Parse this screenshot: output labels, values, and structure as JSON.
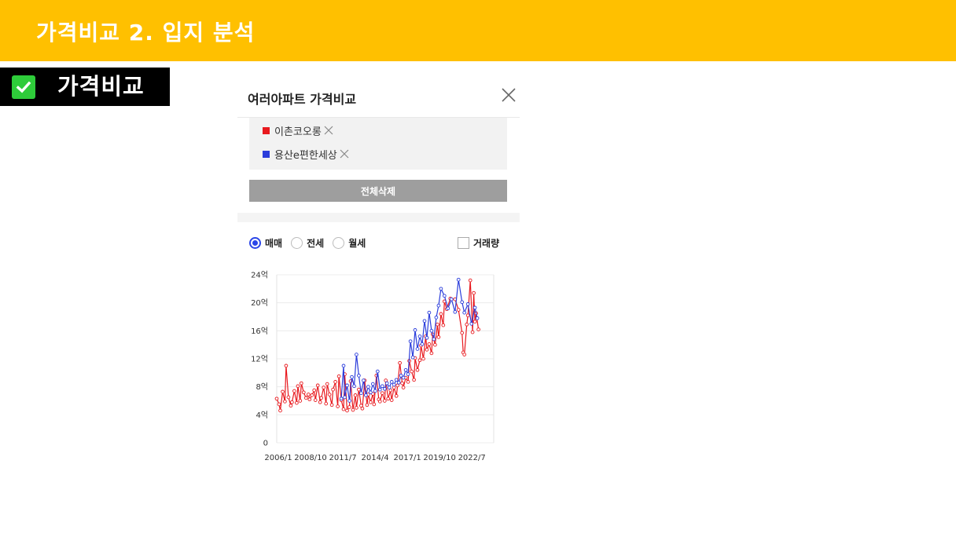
{
  "slide": {
    "title": "가격비교 2. 입지 분석",
    "header_color": "#FFC000"
  },
  "section": {
    "label": "가격비교",
    "icon": "check-icon"
  },
  "panel": {
    "title": "여러아파트 가격비교",
    "close_icon": "close-icon",
    "apartments": [
      {
        "name": "이촌코오롱",
        "color": "#e8191e"
      },
      {
        "name": "용산e편한세상",
        "color": "#2b3ddb"
      }
    ],
    "clear_all_label": "전체삭제",
    "filters": {
      "options": [
        {
          "label": "매매",
          "checked": true
        },
        {
          "label": "전세",
          "checked": false
        },
        {
          "label": "월세",
          "checked": false
        }
      ],
      "volume_label": "거래량",
      "volume_checked": false
    }
  },
  "chart_data": {
    "type": "line",
    "x_tick_labels": [
      "2006/1",
      "2008/10",
      "2011/7",
      "2014/4",
      "2017/1",
      "2019/10",
      "2022/7"
    ],
    "y_tick_labels": [
      "0",
      "4억",
      "8억",
      "12억",
      "16억",
      "20억",
      "24억"
    ],
    "ylim": [
      0,
      24
    ],
    "xlim": [
      2006.0,
      2024.5
    ],
    "grid": true,
    "series": [
      {
        "name": "이촌코오롱",
        "color": "#e8191e",
        "points": [
          [
            2006.0,
            6.3
          ],
          [
            2006.2,
            5.5
          ],
          [
            2006.3,
            4.6
          ],
          [
            2006.5,
            7.3
          ],
          [
            2006.7,
            5.9
          ],
          [
            2006.8,
            11.0
          ],
          [
            2007.0,
            6.5
          ],
          [
            2007.2,
            5.3
          ],
          [
            2007.3,
            5.8
          ],
          [
            2007.5,
            7.4
          ],
          [
            2007.7,
            5.7
          ],
          [
            2007.8,
            8.1
          ],
          [
            2008.0,
            6.0
          ],
          [
            2008.1,
            8.5
          ],
          [
            2008.3,
            7.2
          ],
          [
            2008.5,
            6.4
          ],
          [
            2008.7,
            6.9
          ],
          [
            2008.8,
            6.2
          ],
          [
            2009.0,
            6.8
          ],
          [
            2009.2,
            7.5
          ],
          [
            2009.3,
            6.1
          ],
          [
            2009.5,
            8.2
          ],
          [
            2009.7,
            5.8
          ],
          [
            2009.8,
            6.4
          ],
          [
            2010.0,
            7.9
          ],
          [
            2010.2,
            5.6
          ],
          [
            2010.3,
            8.4
          ],
          [
            2010.5,
            6.9
          ],
          [
            2010.7,
            5.4
          ],
          [
            2010.8,
            7.6
          ],
          [
            2011.0,
            8.7
          ],
          [
            2011.2,
            5.2
          ],
          [
            2011.3,
            9.5
          ],
          [
            2011.5,
            6.1
          ],
          [
            2011.7,
            4.8
          ],
          [
            2011.8,
            9.8
          ],
          [
            2012.0,
            4.6
          ],
          [
            2012.2,
            5.1
          ],
          [
            2012.3,
            8.8
          ],
          [
            2012.5,
            4.7
          ],
          [
            2012.7,
            6.8
          ],
          [
            2012.8,
            5.0
          ],
          [
            2013.0,
            7.6
          ],
          [
            2013.2,
            5.3
          ],
          [
            2013.3,
            4.9
          ],
          [
            2013.5,
            8.9
          ],
          [
            2013.7,
            5.4
          ],
          [
            2013.8,
            6.9
          ],
          [
            2014.0,
            5.8
          ],
          [
            2014.2,
            7.0
          ],
          [
            2014.3,
            5.5
          ],
          [
            2014.5,
            9.6
          ],
          [
            2014.7,
            6.2
          ],
          [
            2014.8,
            5.9
          ],
          [
            2015.0,
            7.1
          ],
          [
            2015.2,
            6.0
          ],
          [
            2015.3,
            8.9
          ],
          [
            2015.5,
            6.3
          ],
          [
            2015.7,
            7.5
          ],
          [
            2015.8,
            6.1
          ],
          [
            2016.0,
            7.9
          ],
          [
            2016.2,
            6.7
          ],
          [
            2016.3,
            8.2
          ],
          [
            2016.5,
            11.4
          ],
          [
            2016.7,
            8.5
          ],
          [
            2016.8,
            7.9
          ],
          [
            2017.0,
            9.3
          ],
          [
            2017.2,
            8.7
          ],
          [
            2017.3,
            11.7
          ],
          [
            2017.5,
            10.2
          ],
          [
            2017.7,
            9.0
          ],
          [
            2017.8,
            12.1
          ],
          [
            2018.0,
            10.4
          ],
          [
            2018.2,
            11.8
          ],
          [
            2018.3,
            13.9
          ],
          [
            2018.5,
            12.0
          ],
          [
            2018.7,
            15.2
          ],
          [
            2018.8,
            13.3
          ],
          [
            2019.0,
            14.1
          ],
          [
            2019.2,
            12.8
          ],
          [
            2019.3,
            15.5
          ],
          [
            2019.5,
            14.0
          ],
          [
            2019.7,
            16.9
          ],
          [
            2019.8,
            15.1
          ],
          [
            2020.0,
            18.4
          ],
          [
            2020.2,
            16.8
          ],
          [
            2020.3,
            20.2
          ],
          [
            2020.5,
            19.1
          ],
          [
            2020.8,
            20.6
          ],
          [
            2021.2,
            20.5
          ],
          [
            2021.5,
            19.0
          ],
          [
            2021.8,
            15.7
          ],
          [
            2021.9,
            12.9
          ],
          [
            2022.0,
            12.6
          ],
          [
            2022.2,
            16.9
          ],
          [
            2022.3,
            18.2
          ],
          [
            2022.5,
            23.2
          ],
          [
            2022.7,
            15.8
          ],
          [
            2022.8,
            21.4
          ],
          [
            2022.9,
            17.3
          ],
          [
            2023.0,
            18.5
          ],
          [
            2023.2,
            16.2
          ]
        ]
      },
      {
        "name": "용산e편한세상",
        "color": "#2b3ddb",
        "points": [
          [
            2011.5,
            6.3
          ],
          [
            2011.7,
            11.0
          ],
          [
            2011.8,
            6.5
          ],
          [
            2012.0,
            8.2
          ],
          [
            2012.2,
            6.0
          ],
          [
            2012.4,
            9.4
          ],
          [
            2012.6,
            8.1
          ],
          [
            2012.8,
            12.6
          ],
          [
            2013.0,
            9.6
          ],
          [
            2013.2,
            7.1
          ],
          [
            2013.4,
            8.9
          ],
          [
            2013.6,
            6.8
          ],
          [
            2013.8,
            8.0
          ],
          [
            2014.0,
            7.2
          ],
          [
            2014.2,
            8.4
          ],
          [
            2014.4,
            7.4
          ],
          [
            2014.6,
            10.2
          ],
          [
            2014.8,
            7.6
          ],
          [
            2015.0,
            8.1
          ],
          [
            2015.2,
            7.7
          ],
          [
            2015.4,
            8.5
          ],
          [
            2015.6,
            7.9
          ],
          [
            2015.8,
            8.7
          ],
          [
            2016.0,
            8.3
          ],
          [
            2016.2,
            9.0
          ],
          [
            2016.4,
            8.6
          ],
          [
            2016.6,
            9.6
          ],
          [
            2016.8,
            9.3
          ],
          [
            2017.0,
            10.4
          ],
          [
            2017.2,
            9.8
          ],
          [
            2017.4,
            14.5
          ],
          [
            2017.6,
            12.2
          ],
          [
            2017.8,
            16.1
          ],
          [
            2018.0,
            13.4
          ],
          [
            2018.2,
            15.2
          ],
          [
            2018.4,
            14.1
          ],
          [
            2018.6,
            17.4
          ],
          [
            2018.8,
            15.0
          ],
          [
            2019.0,
            18.6
          ],
          [
            2019.2,
            16.0
          ],
          [
            2019.4,
            14.8
          ],
          [
            2019.6,
            17.9
          ],
          [
            2019.8,
            19.6
          ],
          [
            2020.0,
            22.0
          ],
          [
            2020.3,
            21.0
          ],
          [
            2020.6,
            19.2
          ],
          [
            2020.9,
            20.5
          ],
          [
            2021.2,
            18.7
          ],
          [
            2021.5,
            23.3
          ],
          [
            2021.8,
            20.1
          ],
          [
            2022.0,
            18.6
          ],
          [
            2022.3,
            19.8
          ],
          [
            2022.6,
            17.0
          ],
          [
            2022.9,
            19.3
          ],
          [
            2023.1,
            17.8
          ]
        ]
      }
    ]
  }
}
